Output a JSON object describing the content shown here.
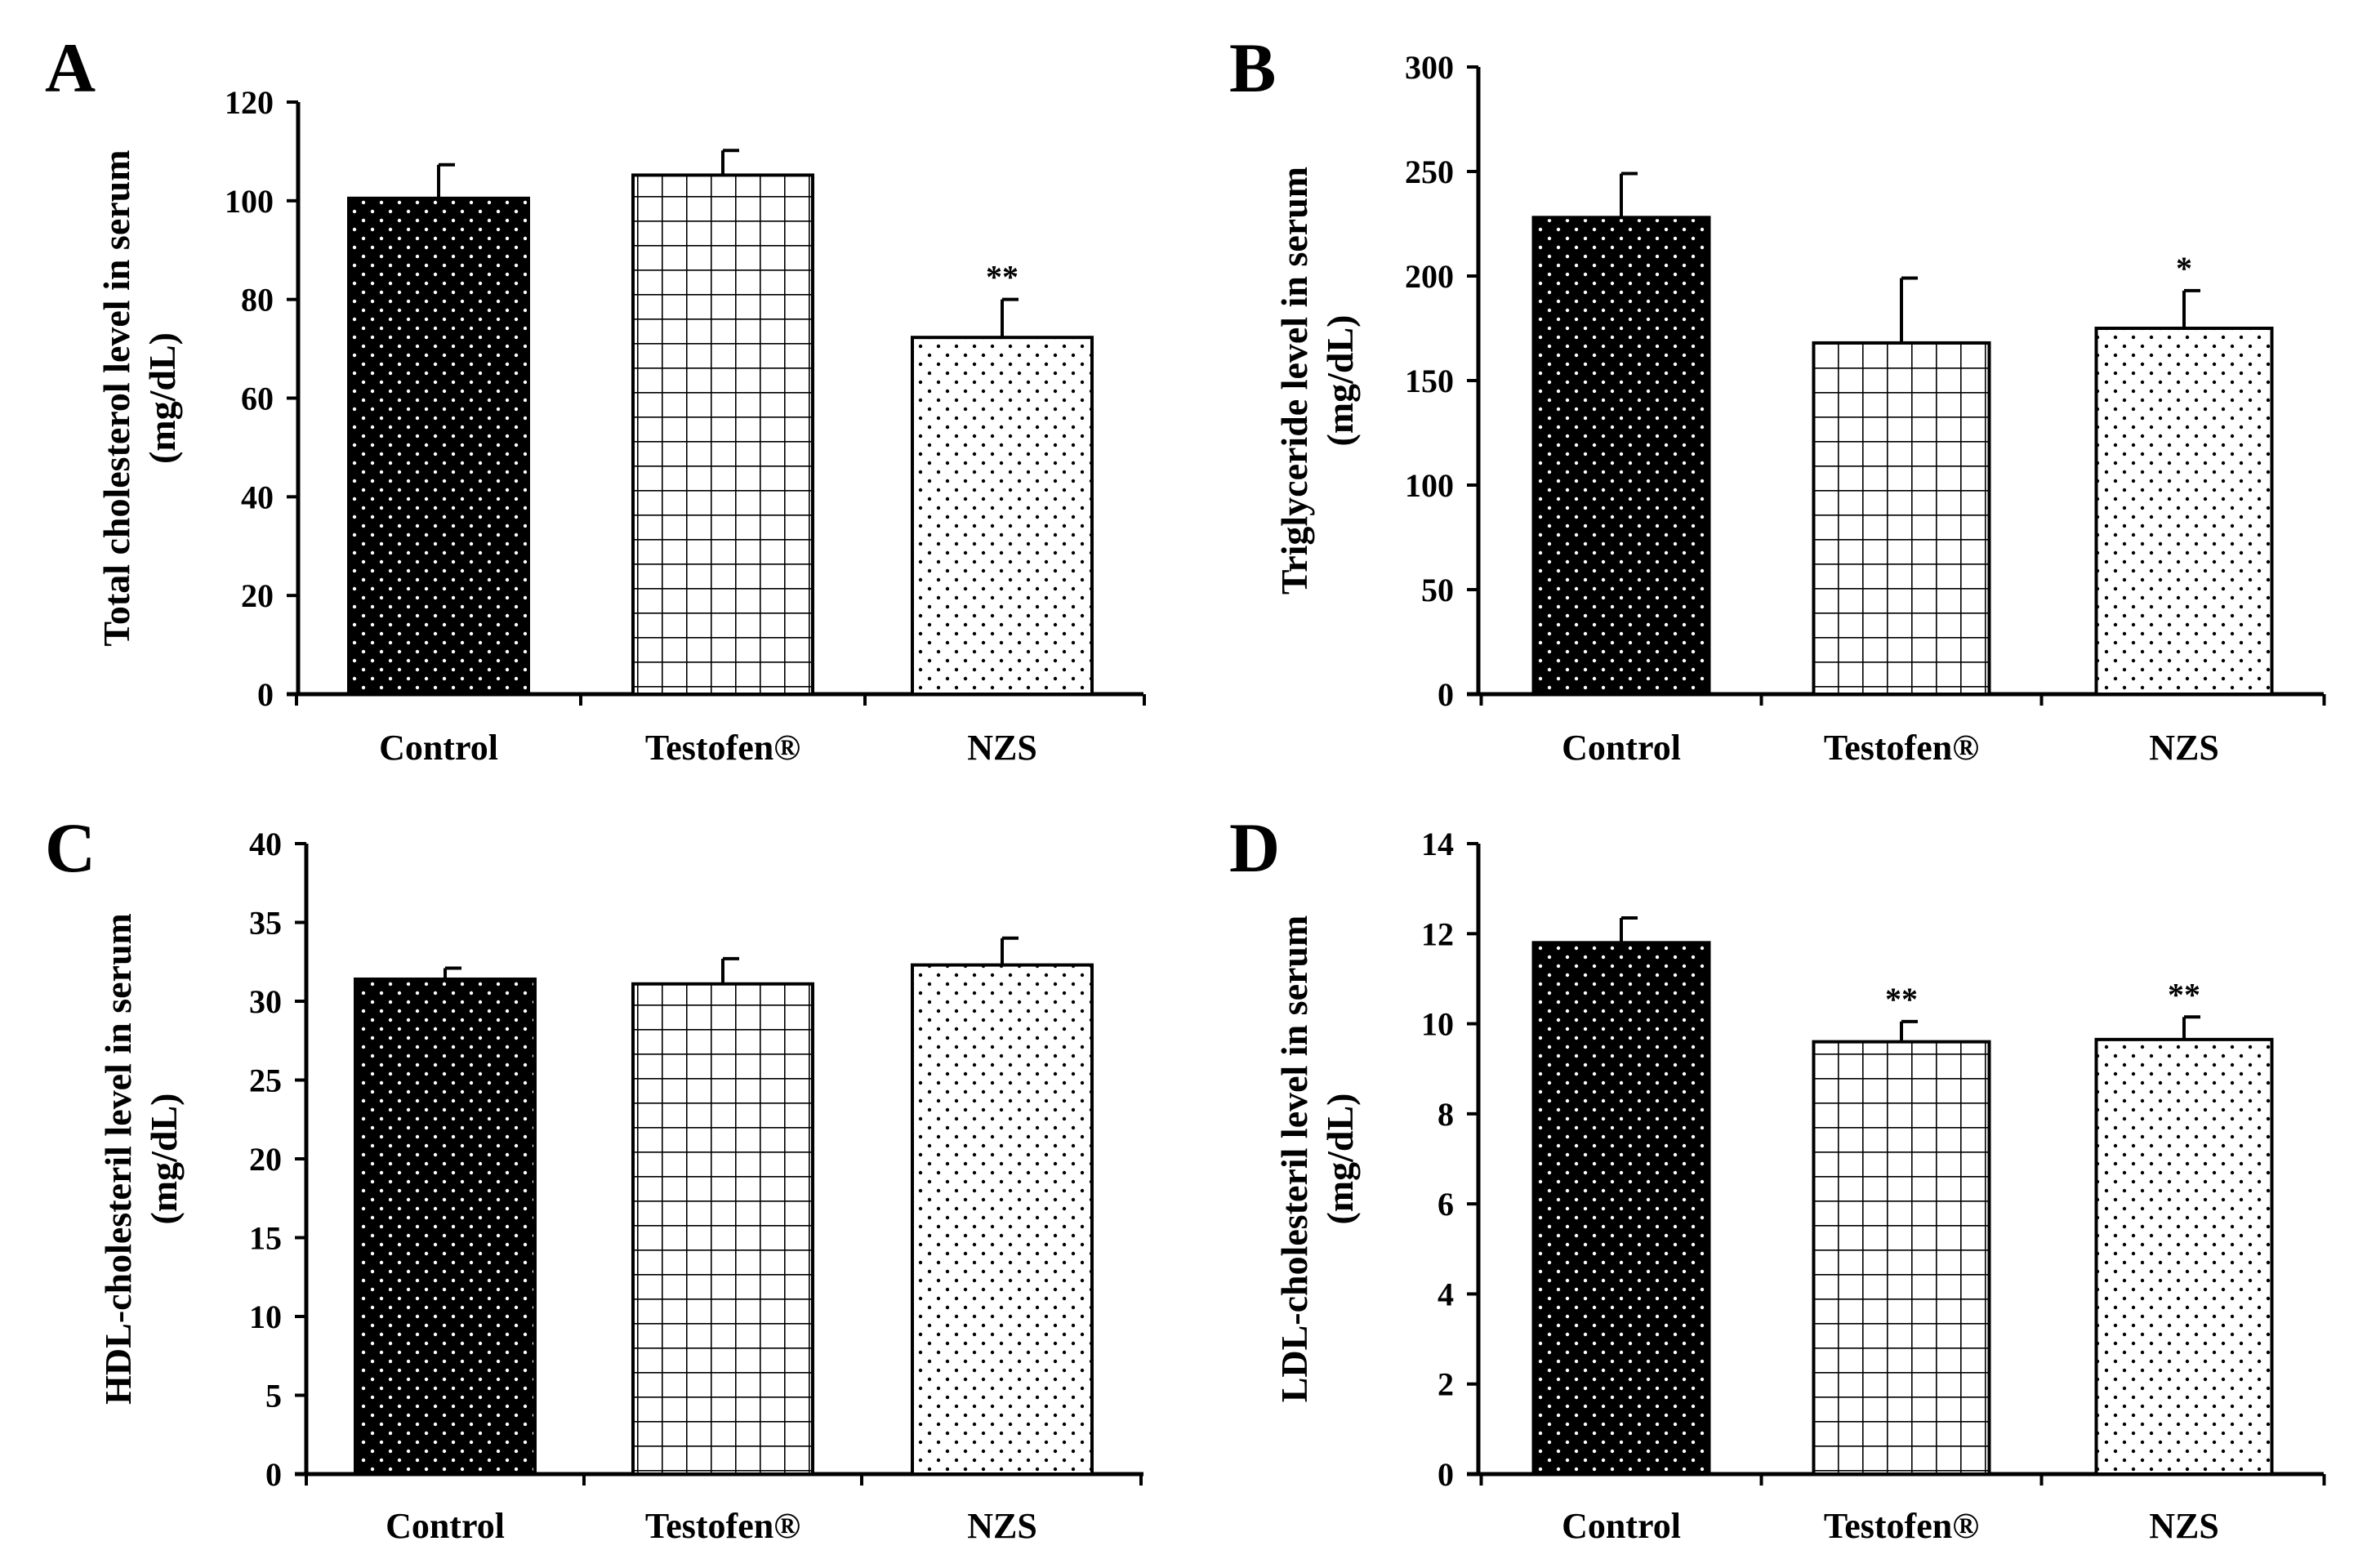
{
  "chart_data": [
    {
      "type": "bar",
      "panel": "A",
      "categories": [
        "Control",
        "Testofen®",
        "NZS"
      ],
      "values": [
        100.5,
        105.2,
        72.3
      ],
      "errors": [
        6.8,
        5.0,
        7.7
      ],
      "significance": [
        "",
        "",
        "**"
      ],
      "patterns": [
        "dark-dots",
        "grid",
        "light-dots"
      ],
      "ylabel": [
        "Total cholesterol level in serum",
        "(mg/dL)"
      ],
      "ylim": [
        0,
        120
      ],
      "yticks": [
        0,
        20,
        40,
        60,
        80,
        100,
        120
      ]
    },
    {
      "type": "bar",
      "panel": "B",
      "categories": [
        "Control",
        "Testofen®",
        "NZS"
      ],
      "values": [
        228,
        168,
        175
      ],
      "errors": [
        21,
        31,
        18
      ],
      "significance": [
        "",
        "",
        "*"
      ],
      "patterns": [
        "dark-dots",
        "grid",
        "light-dots"
      ],
      "ylabel": [
        "Triglyceride  level in serum",
        "(mg/dL)"
      ],
      "ylim": [
        0,
        300
      ],
      "yticks": [
        0,
        50,
        100,
        150,
        200,
        250,
        300
      ]
    },
    {
      "type": "bar",
      "panel": "C",
      "categories": [
        "Control",
        "Testofen®",
        "NZS"
      ],
      "values": [
        31.4,
        31.1,
        32.3
      ],
      "errors": [
        0.7,
        1.6,
        1.7
      ],
      "significance": [
        "",
        "",
        ""
      ],
      "patterns": [
        "dark-dots",
        "grid",
        "light-dots"
      ],
      "ylabel": [
        "HDL-cholesteril level in serum",
        "(mg/dL)"
      ],
      "ylim": [
        0,
        40
      ],
      "yticks": [
        0,
        5,
        10,
        15,
        20,
        25,
        30,
        35,
        40
      ]
    },
    {
      "type": "bar",
      "panel": "D",
      "categories": [
        "Control",
        "Testofen®",
        "NZS"
      ],
      "values": [
        11.8,
        9.6,
        9.65
      ],
      "errors": [
        0.55,
        0.45,
        0.5
      ],
      "significance": [
        "",
        "**",
        "**"
      ],
      "patterns": [
        "dark-dots",
        "grid",
        "light-dots"
      ],
      "ylabel": [
        "LDL-cholesteril level in serum",
        "(mg/dL)"
      ],
      "ylim": [
        0,
        14
      ],
      "yticks": [
        0,
        2,
        4,
        6,
        8,
        10,
        12,
        14
      ]
    }
  ]
}
